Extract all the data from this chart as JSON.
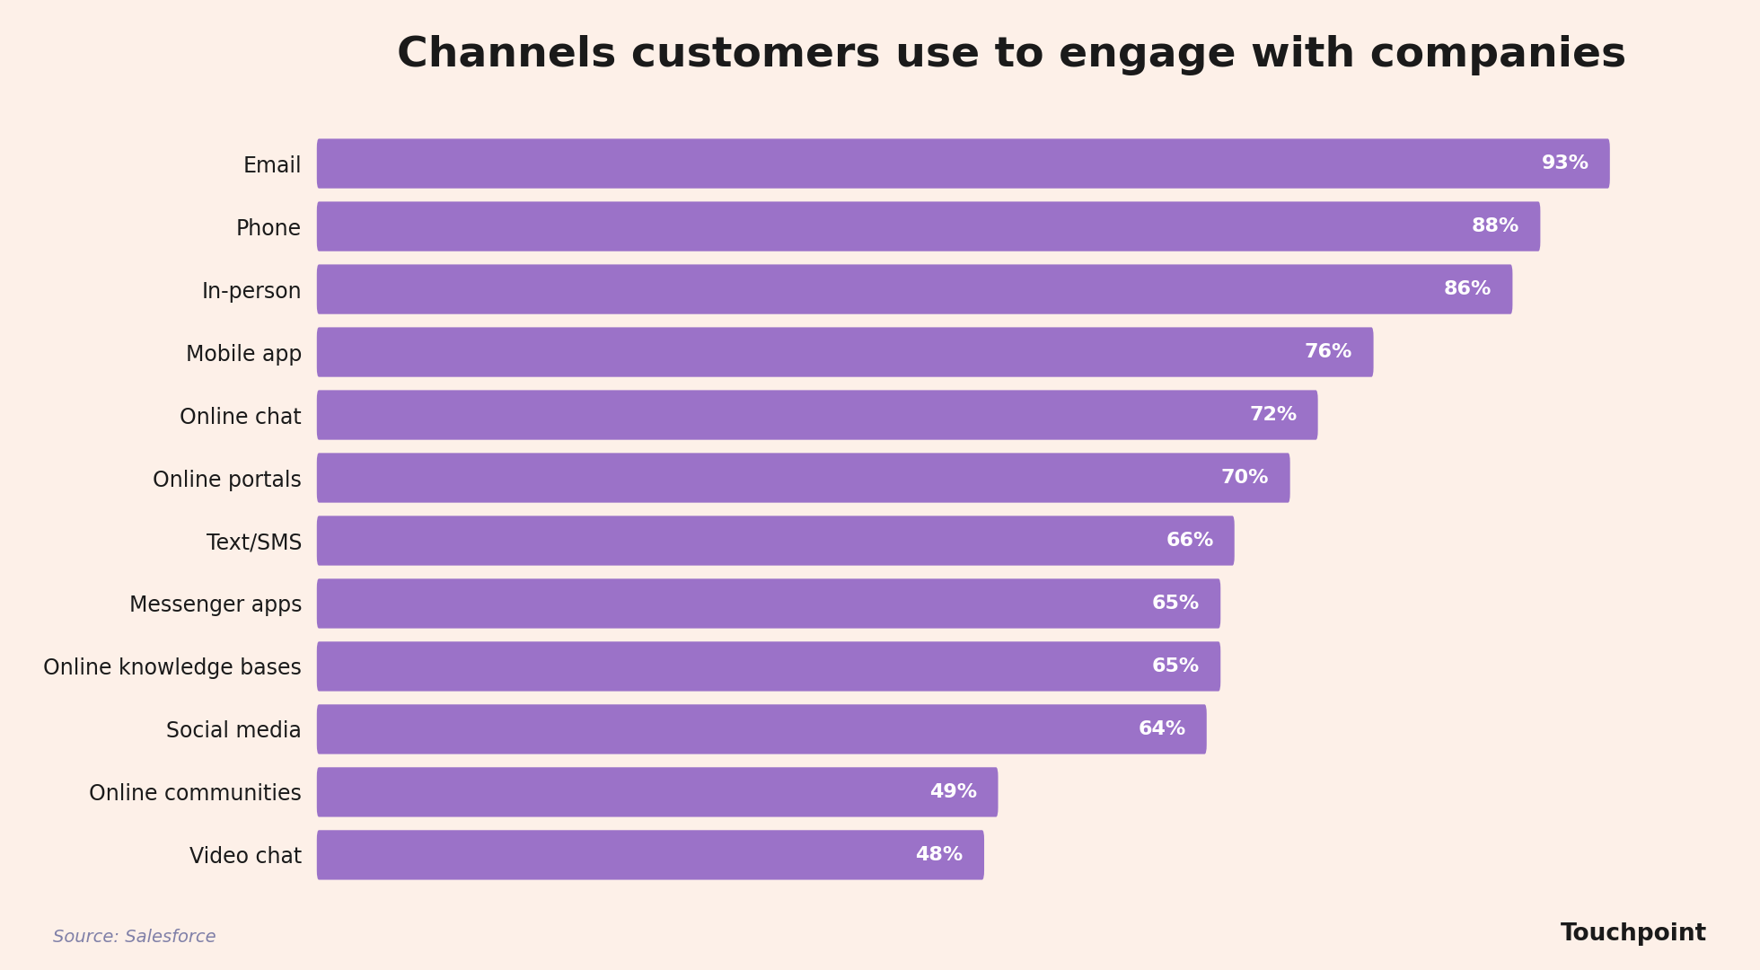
{
  "title": "Channels customers use to engage with companies",
  "categories": [
    "Email",
    "Phone",
    "In-person",
    "Mobile app",
    "Online chat",
    "Online portals",
    "Text/SMS",
    "Messenger apps",
    "Online knowledge bases",
    "Social media",
    "Online communities",
    "Video chat"
  ],
  "values": [
    93,
    88,
    86,
    76,
    72,
    70,
    66,
    65,
    65,
    64,
    49,
    48
  ],
  "bar_color": "#9b72c8",
  "label_color": "#ffffff",
  "title_color": "#1a1a1a",
  "source_text": "Source: Salesforce",
  "source_color": "#8080a8",
  "background_color": "#fdf0e8",
  "category_fontsize": 17,
  "value_fontsize": 16,
  "title_fontsize": 34,
  "source_fontsize": 14,
  "bar_height": 0.58,
  "xlim": [
    0,
    100
  ],
  "bar_gap": 0.42
}
